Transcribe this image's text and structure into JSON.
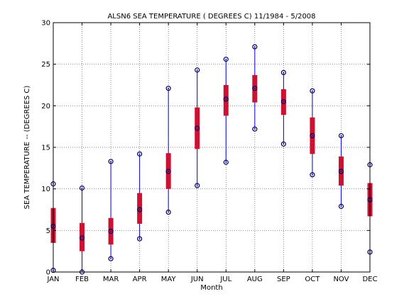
{
  "chart_data": {
    "type": "box",
    "title": "ALSN6  SEA TEMPERATURE ( DEGREES C) 11/1984 - 5/2008",
    "xlabel": "Month",
    "ylabel": "SEA TEMPERATURE -- (DEGREES C)",
    "ylim": [
      0,
      30
    ],
    "yticks": [
      0,
      5,
      10,
      15,
      20,
      25,
      30
    ],
    "grid": true,
    "categories": [
      "JAN",
      "FEB",
      "MAR",
      "APR",
      "MAY",
      "JUN",
      "JUL",
      "AUG",
      "SEP",
      "OCT",
      "NOV",
      "DEC"
    ],
    "boxes": [
      {
        "min": 0.2,
        "q1": 3.5,
        "median": 5.5,
        "q3": 7.7,
        "max": 10.6
      },
      {
        "min": 0.0,
        "q1": 2.5,
        "median": 4.1,
        "q3": 5.9,
        "max": 10.1
      },
      {
        "min": 1.6,
        "q1": 3.3,
        "median": 4.9,
        "q3": 6.5,
        "max": 13.3
      },
      {
        "min": 4.0,
        "q1": 5.8,
        "median": 7.5,
        "q3": 9.5,
        "max": 14.2
      },
      {
        "min": 7.2,
        "q1": 10.0,
        "median": 12.1,
        "q3": 14.3,
        "max": 22.1
      },
      {
        "min": 10.4,
        "q1": 14.8,
        "median": 17.3,
        "q3": 19.8,
        "max": 24.3
      },
      {
        "min": 13.2,
        "q1": 18.8,
        "median": 20.8,
        "q3": 22.5,
        "max": 25.6
      },
      {
        "min": 17.2,
        "q1": 20.4,
        "median": 22.1,
        "q3": 23.7,
        "max": 27.1
      },
      {
        "min": 15.4,
        "q1": 18.9,
        "median": 20.5,
        "q3": 22.0,
        "max": 24.0
      },
      {
        "min": 11.7,
        "q1": 14.2,
        "median": 16.4,
        "q3": 18.6,
        "max": 21.8
      },
      {
        "min": 7.9,
        "q1": 10.4,
        "median": 12.1,
        "q3": 13.9,
        "max": 16.4
      },
      {
        "min": 2.4,
        "q1": 6.7,
        "median": 8.7,
        "q3": 10.7,
        "max": 12.9
      }
    ],
    "colors": {
      "box": "#cc1133",
      "whisker": "#0000cc",
      "marker": "#000066",
      "grid": "#555555"
    }
  }
}
